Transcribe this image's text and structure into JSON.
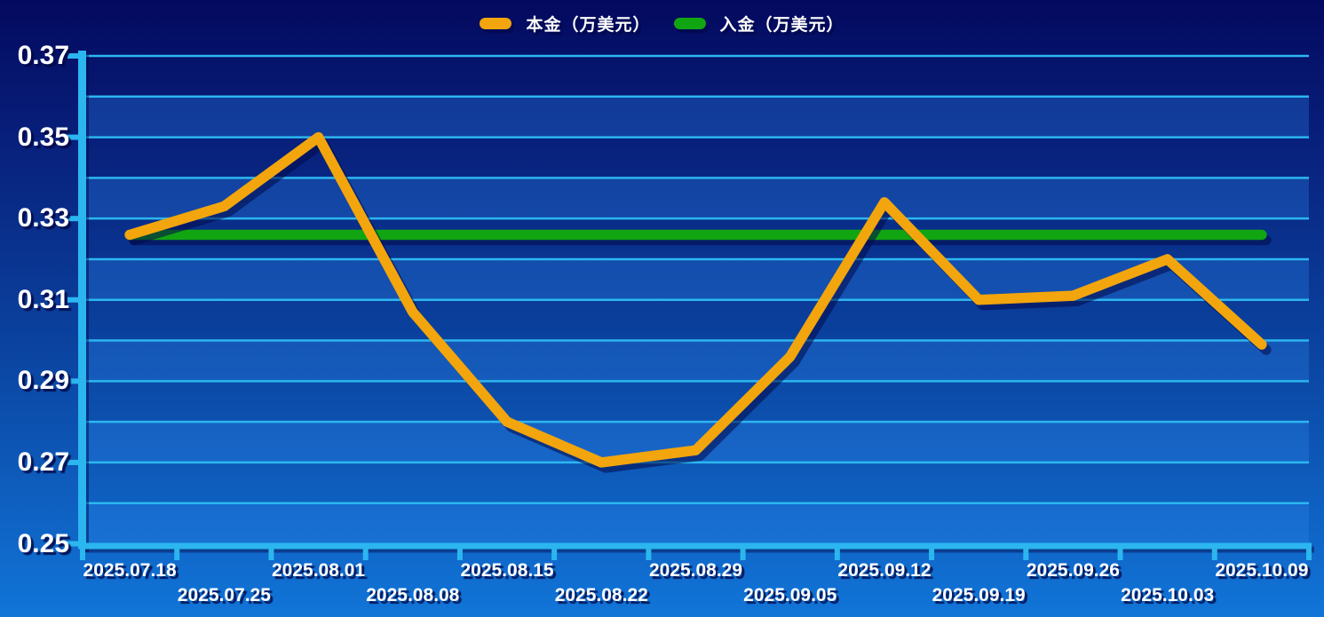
{
  "legend": {
    "items": [
      {
        "label": "本金（万美元）",
        "color": "#F2A50C"
      },
      {
        "label": "入金（万美元）",
        "color": "#12A512"
      }
    ]
  },
  "chart_data": {
    "type": "line",
    "title": "",
    "xlabel": "",
    "ylabel": "",
    "x": [
      "2025.07.18",
      "2025.07.25",
      "2025.08.01",
      "2025.08.08",
      "2025.08.15",
      "2025.08.22",
      "2025.08.29",
      "2025.09.05",
      "2025.09.12",
      "2025.09.19",
      "2025.09.26",
      "2025.10.03",
      "2025.10.09"
    ],
    "series": [
      {
        "name": "本金（万美元）",
        "color": "#F2A50C",
        "values": [
          0.326,
          0.333,
          0.35,
          0.307,
          0.28,
          0.27,
          0.273,
          0.296,
          0.334,
          0.31,
          0.311,
          0.32,
          0.299
        ]
      },
      {
        "name": "入金（万美元）",
        "color": "#12A512",
        "values": [
          0.326,
          0.326,
          0.326,
          0.326,
          0.326,
          0.326,
          0.326,
          0.326,
          0.326,
          0.326,
          0.326,
          0.326,
          0.326
        ]
      }
    ],
    "ylim": [
      0.25,
      0.37
    ],
    "y_tick_labels": [
      "0.25",
      "0.27",
      "0.29",
      "0.31",
      "0.33",
      "0.35",
      "0.37"
    ],
    "y_gridline_step": 0.01,
    "grid": "horizontal",
    "legend_position": "top-center",
    "colors": {
      "grid": "#2CB6F0",
      "background_top": "#03095E",
      "background_bottom": "#1175D8",
      "band_overlay": "rgba(45,135,240,0.30)",
      "text": "#FFFFFF"
    }
  }
}
